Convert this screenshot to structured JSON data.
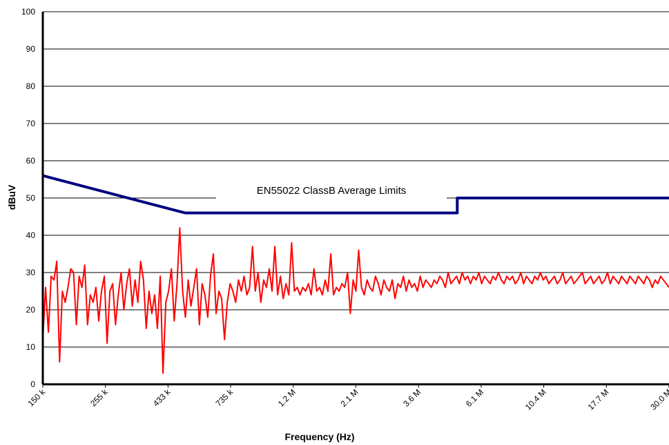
{
  "chart_data": {
    "type": "line",
    "title": "",
    "xlabel": "Frequency (Hz)",
    "ylabel": "dBuV",
    "ylim": [
      0,
      100
    ],
    "yticks": [
      0,
      10,
      20,
      30,
      40,
      50,
      60,
      70,
      80,
      90,
      100
    ],
    "x_scale": "log",
    "x_range_hz": [
      150000,
      30000000
    ],
    "x_tick_labels": [
      "150 k",
      "255 k",
      "433 k",
      "735 k",
      "1.2 M",
      "2.1 M",
      "3.6 M",
      "6.1 M",
      "10.4 M",
      "17.7 M",
      "30.0 M"
    ],
    "grid": "horizontal",
    "colors": {
      "limit": "#000080",
      "measurement": "#ff0000",
      "grid": "#000000"
    },
    "annotations": [
      {
        "text": "EN55022 ClassB Average Limits",
        "x_hz": 1200000,
        "y": 53
      }
    ],
    "series": [
      {
        "role": "limit",
        "x_hz": [
          150000,
          500000,
          5000000,
          5000000,
          30000000
        ],
        "values": [
          56,
          46,
          46,
          50,
          50
        ]
      },
      {
        "role": "measurement",
        "values": [
          12,
          26,
          14,
          29,
          28,
          33,
          6,
          25,
          22,
          26,
          31,
          30,
          16,
          29,
          26,
          32,
          16,
          24,
          22,
          26,
          17,
          25,
          29,
          11,
          25,
          27,
          16,
          24,
          30,
          20,
          27,
          31,
          21,
          28,
          22,
          33,
          28,
          15,
          25,
          19,
          24,
          15,
          29,
          3,
          22,
          25,
          31,
          17,
          27,
          42,
          25,
          18,
          28,
          21,
          26,
          31,
          16,
          27,
          24,
          18,
          29,
          35,
          19,
          25,
          23,
          12,
          22,
          27,
          25,
          22,
          28,
          25,
          29,
          24,
          26,
          37,
          25,
          30,
          22,
          28,
          26,
          31,
          25,
          37,
          24,
          29,
          23,
          27,
          24,
          38,
          25,
          26,
          24,
          26,
          25,
          27,
          24,
          31,
          25,
          26,
          24,
          28,
          25,
          35,
          24,
          26,
          25,
          27,
          26,
          30,
          19,
          28,
          25,
          36,
          26,
          24,
          28,
          26,
          25,
          29,
          27,
          24,
          28,
          26,
          25,
          28,
          23,
          27,
          26,
          29,
          25,
          28,
          26,
          27,
          25,
          29,
          26,
          28,
          27,
          26,
          28,
          27,
          29,
          28,
          26,
          30,
          27,
          28,
          29,
          27,
          30,
          28,
          29,
          27,
          29,
          28,
          30,
          27,
          29,
          28,
          27,
          29,
          28,
          30,
          28,
          27,
          29,
          28,
          29,
          27,
          28,
          30,
          27,
          29,
          28,
          27,
          29,
          28,
          30,
          28,
          29,
          27,
          28,
          29,
          27,
          28,
          30,
          27,
          28,
          29,
          27,
          28,
          29,
          30,
          27,
          28,
          29,
          27,
          28,
          29,
          27,
          28,
          30,
          27,
          29,
          28,
          27,
          29,
          28,
          27,
          29,
          28,
          27,
          29,
          28,
          27,
          29,
          28,
          26,
          28,
          27,
          29,
          28,
          27,
          26
        ]
      }
    ]
  }
}
